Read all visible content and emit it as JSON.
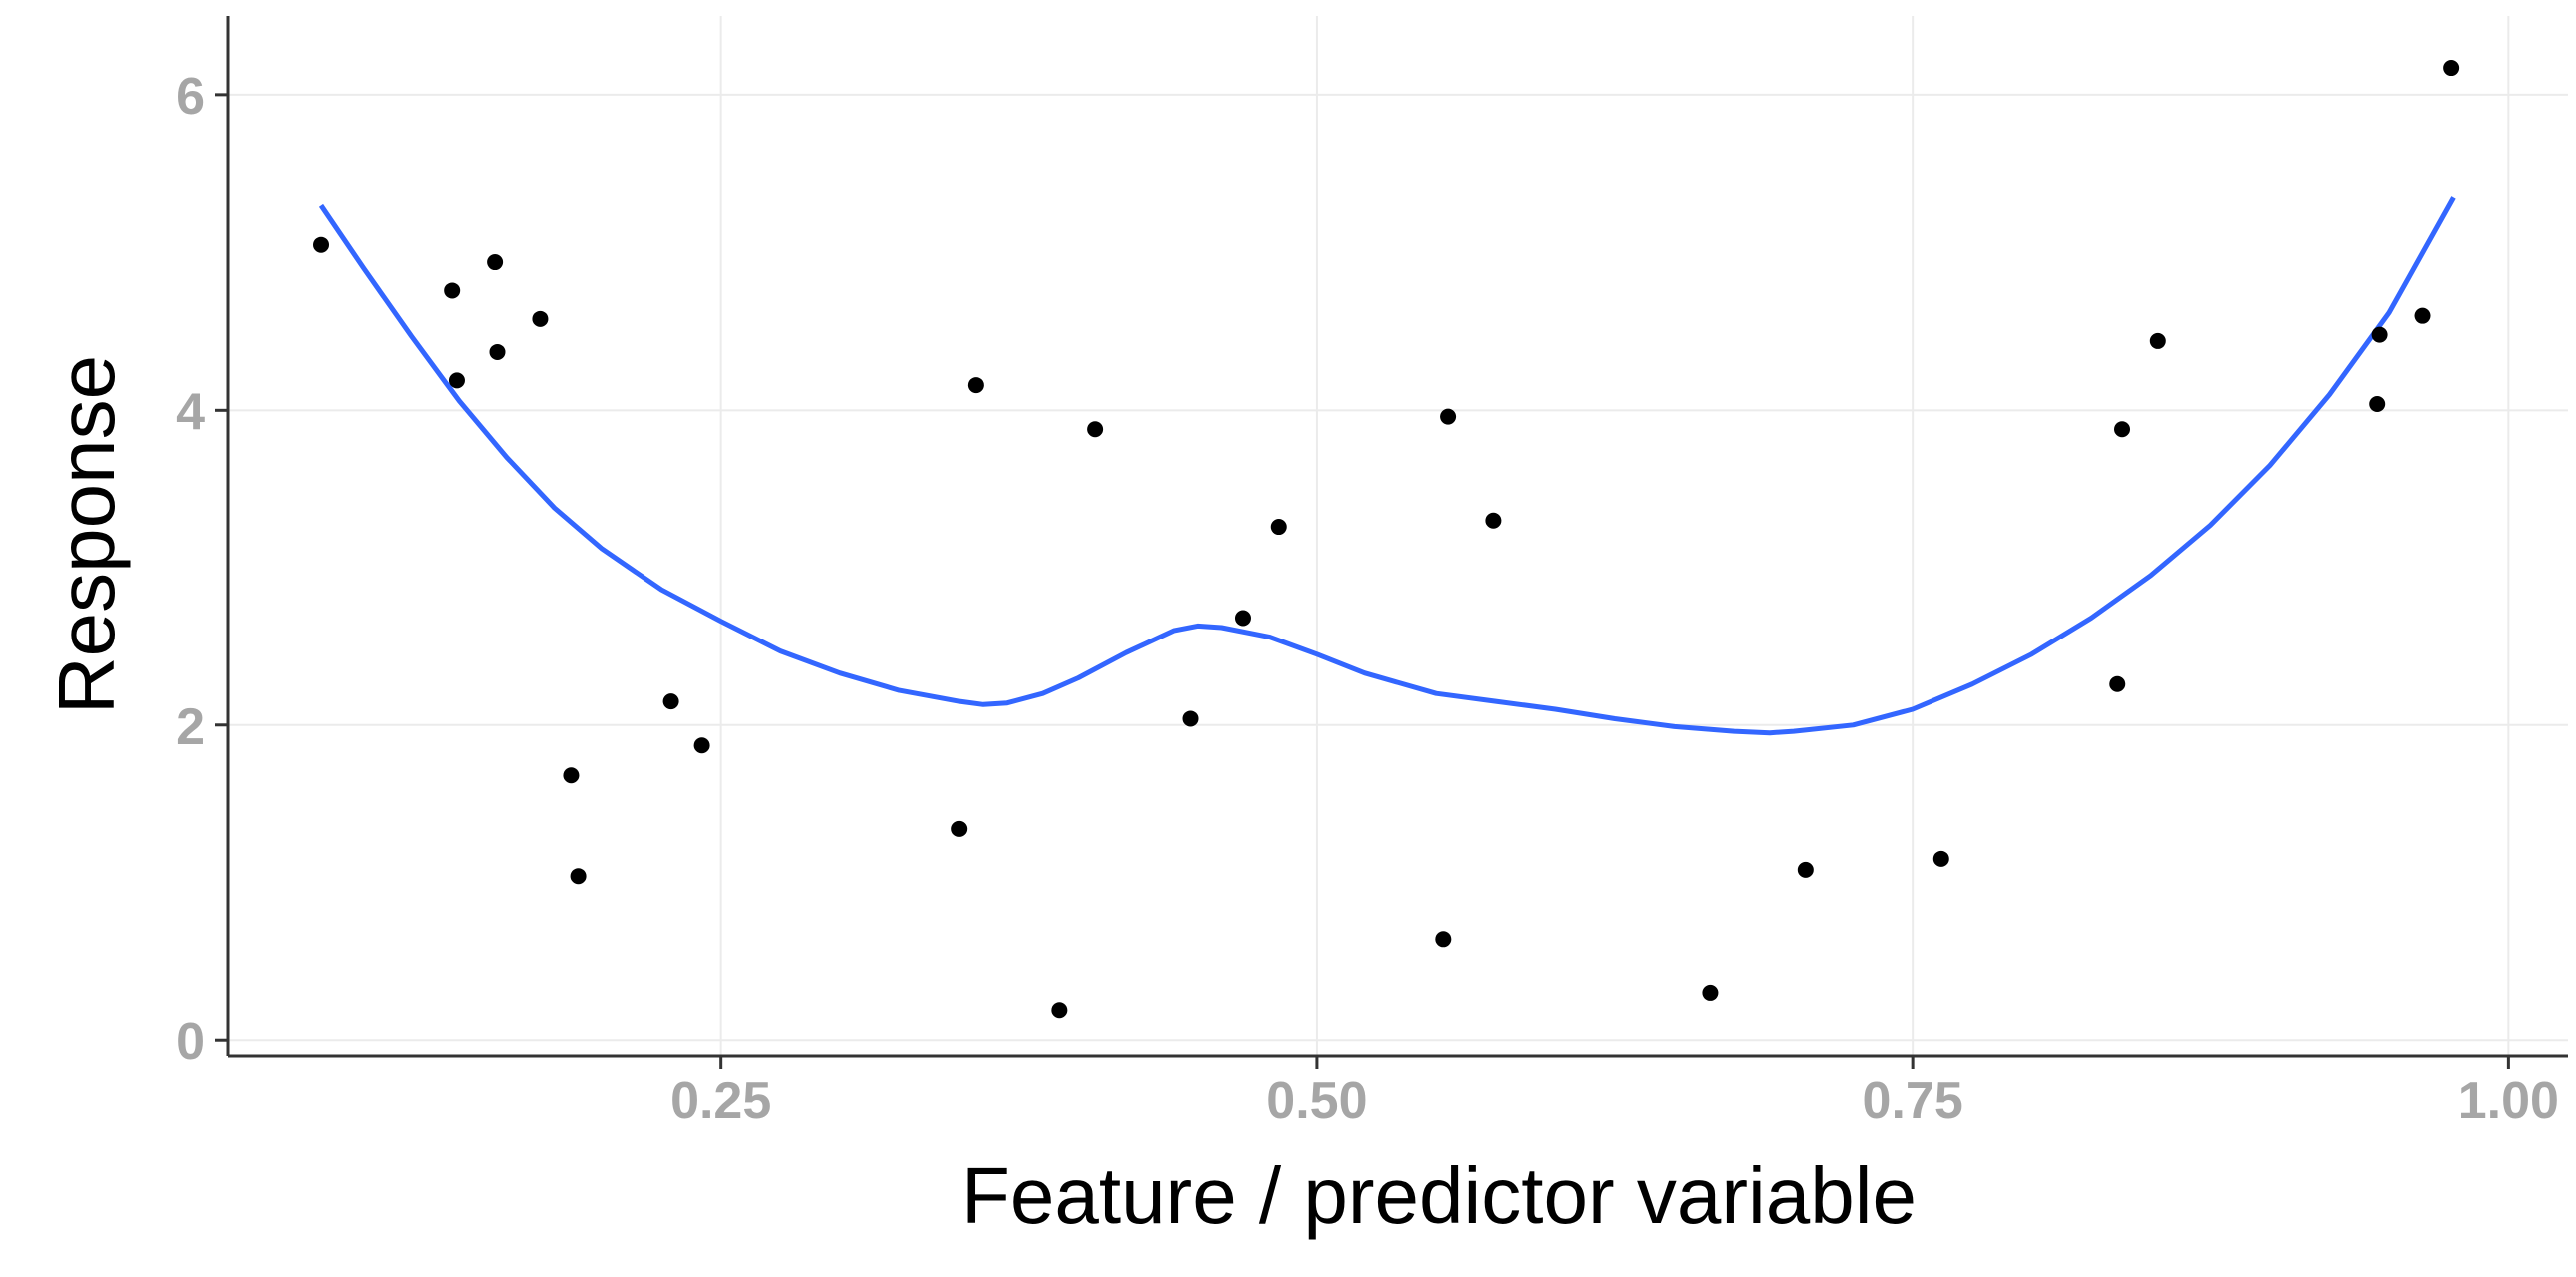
{
  "chart_data": {
    "type": "scatter",
    "title": "",
    "xlabel": "Feature / predictor variable",
    "ylabel": "Response",
    "xlim": [
      0.043,
      1.025
    ],
    "ylim": [
      -0.1,
      6.5
    ],
    "x_ticks": [
      0.25,
      0.5,
      0.75,
      1.0
    ],
    "x_tick_labels": [
      "0.25",
      "0.50",
      "0.75",
      "1.00"
    ],
    "y_ticks": [
      0,
      2,
      4,
      6
    ],
    "y_tick_labels": [
      "0",
      "2",
      "4",
      "6"
    ],
    "grid": true,
    "legend": "none",
    "colors": {
      "points": "#000000",
      "smooth": "#3366ff",
      "grid": "#ebebeb",
      "axis": "#333333"
    },
    "points": {
      "x": [
        0.082,
        0.137,
        0.139,
        0.155,
        0.156,
        0.174,
        0.187,
        0.19,
        0.229,
        0.242,
        0.35,
        0.357,
        0.392,
        0.407,
        0.447,
        0.469,
        0.484,
        0.553,
        0.555,
        0.574,
        0.665,
        0.705,
        0.762,
        0.836,
        0.838,
        0.853,
        0.945,
        0.946,
        0.964,
        0.976
      ],
      "y": [
        5.05,
        4.76,
        4.19,
        4.94,
        4.37,
        4.58,
        1.68,
        1.04,
        2.15,
        1.87,
        1.34,
        4.16,
        0.19,
        3.88,
        2.04,
        2.68,
        3.26,
        0.64,
        3.96,
        3.3,
        0.3,
        1.08,
        1.15,
        2.26,
        3.88,
        4.44,
        4.04,
        4.48,
        4.6,
        6.17
      ]
    },
    "smooth": {
      "x": [
        0.082,
        0.1,
        0.12,
        0.14,
        0.16,
        0.18,
        0.2,
        0.225,
        0.25,
        0.275,
        0.3,
        0.325,
        0.35,
        0.36,
        0.37,
        0.385,
        0.4,
        0.42,
        0.44,
        0.45,
        0.46,
        0.48,
        0.5,
        0.52,
        0.55,
        0.575,
        0.6,
        0.625,
        0.65,
        0.675,
        0.69,
        0.7,
        0.725,
        0.75,
        0.775,
        0.8,
        0.825,
        0.85,
        0.875,
        0.9,
        0.925,
        0.95,
        0.977
      ],
      "y": [
        5.3,
        4.9,
        4.47,
        4.06,
        3.7,
        3.38,
        3.12,
        2.86,
        2.66,
        2.47,
        2.33,
        2.22,
        2.15,
        2.13,
        2.14,
        2.2,
        2.3,
        2.46,
        2.6,
        2.63,
        2.62,
        2.56,
        2.45,
        2.33,
        2.2,
        2.15,
        2.1,
        2.04,
        1.99,
        1.96,
        1.95,
        1.96,
        2.0,
        2.1,
        2.26,
        2.45,
        2.68,
        2.95,
        3.27,
        3.65,
        4.1,
        4.62,
        5.35
      ]
    }
  }
}
